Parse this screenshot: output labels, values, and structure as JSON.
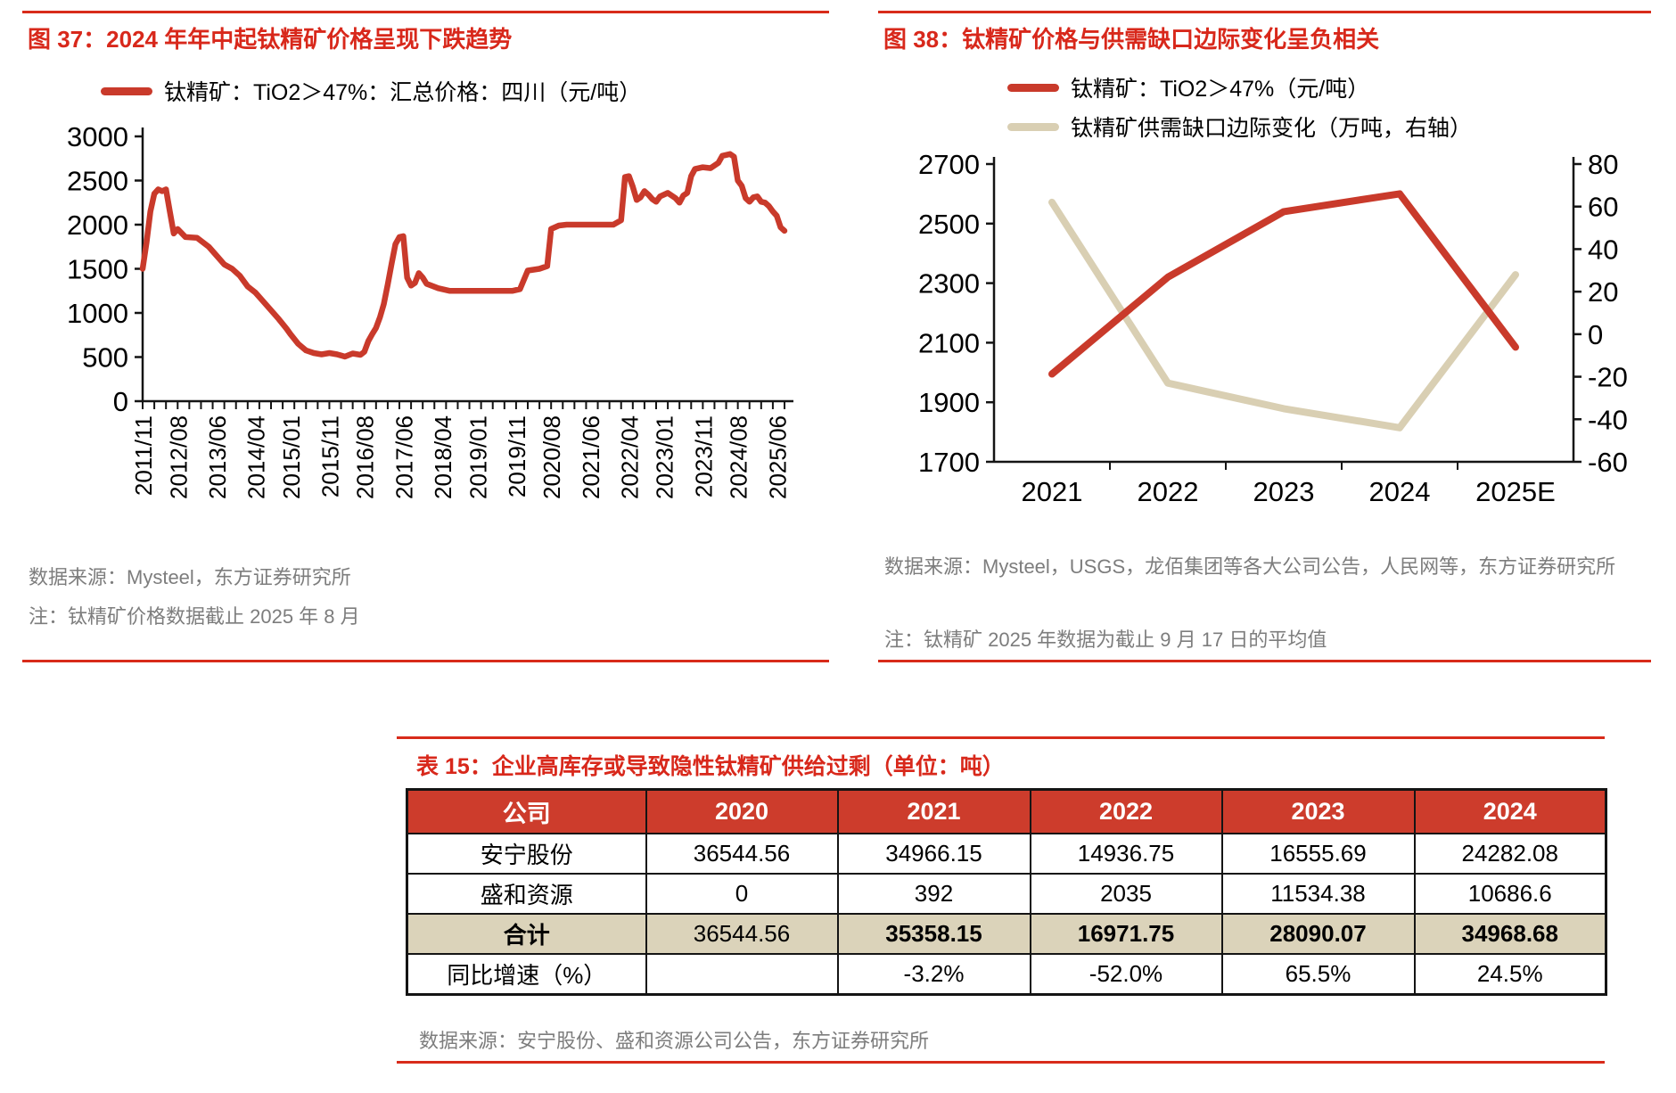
{
  "colors": {
    "accent_red": "#d8281b",
    "line_red": "#c93a2b",
    "line_beige": "#d9cfb3",
    "table_header_bg": "#cd3c2c",
    "total_row_bg": "#dbd3ba",
    "source_gray": "#7d7d7d"
  },
  "figure37": {
    "title": "图 37：2024 年年中起钛精矿价格呈现下跌趋势",
    "legend": "钛精矿：TiO2＞47%：汇总价格：四川（元/吨）",
    "source": "数据来源：Mysteel，东方证券研究所",
    "note": "注：钛精矿价格数据截止 2025 年 8 月"
  },
  "figure38": {
    "title": "图 38：钛精矿价格与供需缺口边际变化呈负相关",
    "legend_price": "钛精矿：TiO2＞47%（元/吨）",
    "legend_gap": "钛精矿供需缺口边际变化（万吨，右轴）",
    "source": "数据来源：Mysteel，USGS，龙佰集团等各大公司公告，人民网等，东方证券研究所",
    "note": "注：钛精矿 2025 年数据为截止 9 月 17 日的平均值"
  },
  "table15": {
    "title": "表 15：企业高库存或导致隐性钛精矿供给过剩（单位：吨）",
    "columns": [
      "公司",
      "2020",
      "2021",
      "2022",
      "2023",
      "2024"
    ],
    "rows": [
      {
        "label": "安宁股份",
        "values": [
          "36544.56",
          "34966.15",
          "14936.75",
          "16555.69",
          "24282.08"
        ],
        "highlight": false,
        "bold": [
          false,
          false,
          false,
          false,
          false
        ]
      },
      {
        "label": "盛和资源",
        "values": [
          "0",
          "392",
          "2035",
          "11534.38",
          "10686.6"
        ],
        "highlight": false,
        "bold": [
          false,
          false,
          false,
          false,
          false
        ]
      },
      {
        "label": "合计",
        "values": [
          "36544.56",
          "35358.15",
          "16971.75",
          "28090.07",
          "34968.68"
        ],
        "highlight": true,
        "bold": [
          false,
          true,
          true,
          true,
          true
        ]
      },
      {
        "label": "同比增速（%）",
        "values": [
          "",
          "-3.2%",
          "-52.0%",
          "65.5%",
          "24.5%"
        ],
        "highlight": false,
        "bold": [
          false,
          false,
          false,
          false,
          false
        ]
      }
    ],
    "source": "数据来源：安宁股份、盛和资源公司公告，东方证券研究所"
  },
  "chart_data": [
    {
      "type": "line",
      "title": "图 37：2024 年年中起钛精矿价格呈现下跌趋势",
      "grid": false,
      "legend_position": "top",
      "ylim": [
        0,
        3000
      ],
      "yticks": [
        0,
        500,
        1000,
        1500,
        2000,
        2500,
        3000
      ],
      "x_range": [
        "2011/11",
        "2025/08"
      ],
      "xticklabels": [
        "2011/11",
        "2012/08",
        "2013/06",
        "2014/04",
        "2015/01",
        "2015/11",
        "2016/08",
        "2017/06",
        "2018/04",
        "2019/01",
        "2019/11",
        "2020/08",
        "2021/06",
        "2022/04",
        "2023/01",
        "2023/11",
        "2024/08",
        "2025/06"
      ],
      "series": [
        {
          "name": "钛精矿：TiO2＞47%：汇总价格：四川（元/吨）",
          "color": "#c93a2b",
          "points": [
            [
              "2011/11",
              1500
            ],
            [
              "2011/12",
              1800
            ],
            [
              "2012/01",
              2150
            ],
            [
              "2012/02",
              2350
            ],
            [
              "2012/03",
              2400
            ],
            [
              "2012/04",
              2380
            ],
            [
              "2012/05",
              2400
            ],
            [
              "2012/06",
              2150
            ],
            [
              "2012/07",
              1900
            ],
            [
              "2012/08",
              1950
            ],
            [
              "2012/10",
              1860
            ],
            [
              "2013/01",
              1850
            ],
            [
              "2013/04",
              1750
            ],
            [
              "2013/06",
              1650
            ],
            [
              "2013/08",
              1550
            ],
            [
              "2013/10",
              1500
            ],
            [
              "2013/12",
              1420
            ],
            [
              "2014/02",
              1300
            ],
            [
              "2014/04",
              1230
            ],
            [
              "2014/06",
              1130
            ],
            [
              "2014/08",
              1030
            ],
            [
              "2014/10",
              930
            ],
            [
              "2014/12",
              820
            ],
            [
              "2015/01",
              760
            ],
            [
              "2015/03",
              650
            ],
            [
              "2015/05",
              575
            ],
            [
              "2015/07",
              545
            ],
            [
              "2015/09",
              530
            ],
            [
              "2015/11",
              545
            ],
            [
              "2016/01",
              530
            ],
            [
              "2016/03",
              505
            ],
            [
              "2016/05",
              540
            ],
            [
              "2016/07",
              525
            ],
            [
              "2016/08",
              560
            ],
            [
              "2016/09",
              680
            ],
            [
              "2016/10",
              760
            ],
            [
              "2016/11",
              830
            ],
            [
              "2016/12",
              950
            ],
            [
              "2017/01",
              1100
            ],
            [
              "2017/02",
              1320
            ],
            [
              "2017/03",
              1560
            ],
            [
              "2017/04",
              1780
            ],
            [
              "2017/05",
              1860
            ],
            [
              "2017/06",
              1870
            ],
            [
              "2017/07",
              1400
            ],
            [
              "2017/08",
              1310
            ],
            [
              "2017/09",
              1340
            ],
            [
              "2017/10",
              1450
            ],
            [
              "2017/11",
              1400
            ],
            [
              "2017/12",
              1330
            ],
            [
              "2018/03",
              1280
            ],
            [
              "2018/06",
              1250
            ],
            [
              "2018/10",
              1250
            ],
            [
              "2019/02",
              1250
            ],
            [
              "2019/06",
              1250
            ],
            [
              "2019/10",
              1250
            ],
            [
              "2019/12",
              1270
            ],
            [
              "2020/02",
              1480
            ],
            [
              "2020/05",
              1500
            ],
            [
              "2020/07",
              1530
            ],
            [
              "2020/08",
              1950
            ],
            [
              "2020/10",
              1990
            ],
            [
              "2020/12",
              2000
            ],
            [
              "2021/03",
              2000
            ],
            [
              "2021/06",
              2000
            ],
            [
              "2021/09",
              2000
            ],
            [
              "2021/12",
              2000
            ],
            [
              "2022/02",
              2050
            ],
            [
              "2022/03",
              2540
            ],
            [
              "2022/04",
              2550
            ],
            [
              "2022/05",
              2430
            ],
            [
              "2022/06",
              2280
            ],
            [
              "2022/07",
              2310
            ],
            [
              "2022/08",
              2380
            ],
            [
              "2022/09",
              2340
            ],
            [
              "2022/10",
              2290
            ],
            [
              "2022/11",
              2260
            ],
            [
              "2022/12",
              2320
            ],
            [
              "2023/02",
              2360
            ],
            [
              "2023/04",
              2300
            ],
            [
              "2023/05",
              2250
            ],
            [
              "2023/06",
              2330
            ],
            [
              "2023/07",
              2360
            ],
            [
              "2023/08",
              2550
            ],
            [
              "2023/09",
              2630
            ],
            [
              "2023/11",
              2650
            ],
            [
              "2024/01",
              2640
            ],
            [
              "2024/03",
              2700
            ],
            [
              "2024/04",
              2780
            ],
            [
              "2024/06",
              2800
            ],
            [
              "2024/07",
              2770
            ],
            [
              "2024/08",
              2500
            ],
            [
              "2024/09",
              2440
            ],
            [
              "2024/10",
              2300
            ],
            [
              "2024/11",
              2260
            ],
            [
              "2024/12",
              2310
            ],
            [
              "2025/01",
              2320
            ],
            [
              "2025/02",
              2260
            ],
            [
              "2025/03",
              2250
            ],
            [
              "2025/04",
              2210
            ],
            [
              "2025/05",
              2150
            ],
            [
              "2025/06",
              2100
            ],
            [
              "2025/07",
              1970
            ],
            [
              "2025/08",
              1930
            ]
          ]
        }
      ]
    },
    {
      "type": "line",
      "title": "图 38：钛精矿价格与供需缺口边际变化呈负相关",
      "grid": false,
      "legend_position": "top",
      "categories": [
        "2021",
        "2022",
        "2023",
        "2024",
        "2025E"
      ],
      "ylim_left": [
        1700,
        2700
      ],
      "yticks_left": [
        1700,
        1900,
        2100,
        2300,
        2500,
        2700
      ],
      "ylim_right": [
        -60,
        80
      ],
      "yticks_right": [
        -60,
        -40,
        -20,
        0,
        20,
        40,
        60,
        80
      ],
      "series": [
        {
          "name": "钛精矿供需缺口边际变化（万吨，右轴）",
          "axis": "right",
          "color": "#d9cfb3",
          "values": [
            62,
            -23,
            -35,
            -44,
            28
          ]
        },
        {
          "name": "钛精矿：TiO2＞47%（元/吨）",
          "axis": "left",
          "color": "#c93a2b",
          "values": [
            1995,
            2320,
            2540,
            2600,
            2085
          ]
        }
      ]
    }
  ]
}
